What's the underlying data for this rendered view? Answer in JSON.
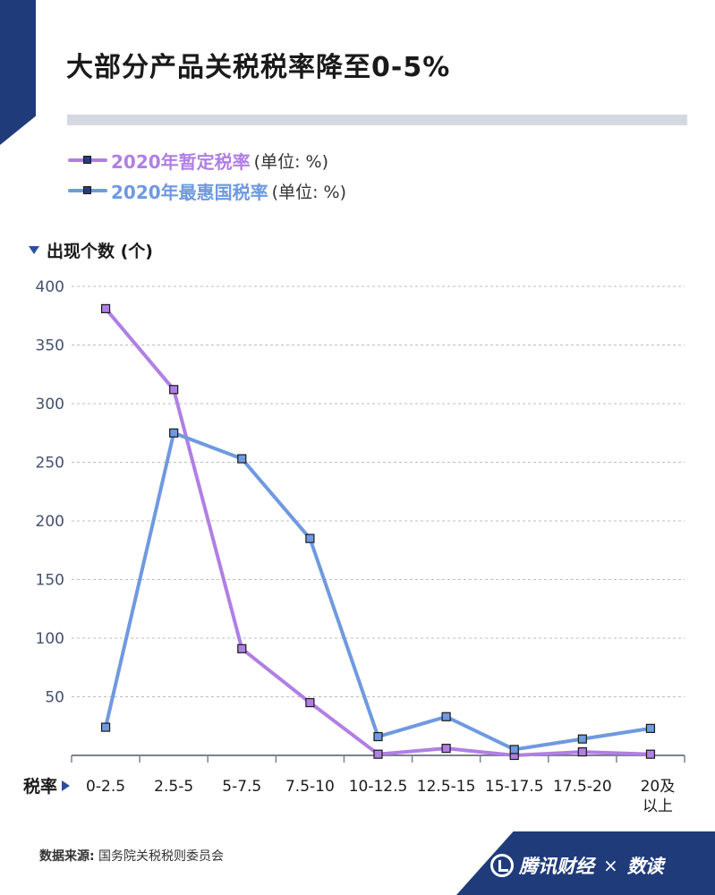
{
  "title": "大部分产品关税税率降至0-5%",
  "legend": [
    {
      "name": "2020年暂定税率",
      "unit": "(单位: %)",
      "color": "#b07fe4"
    },
    {
      "name": "2020年最惠国税率",
      "unit": "(单位: %)",
      "color": "#6f99e0"
    }
  ],
  "axis": {
    "y_title": "出现个数 (个)",
    "x_title": "税率"
  },
  "chart_data": {
    "type": "line",
    "categories": [
      "0-2.5",
      "2.5-5",
      "5-7.5",
      "7.5-10",
      "10-12.5",
      "12.5-15",
      "15-17.5",
      "17.5-20",
      "20及以上"
    ],
    "category_lines": [
      [
        "0-2.5"
      ],
      [
        "2.5-5"
      ],
      [
        "5-7.5"
      ],
      [
        "7.5-10"
      ],
      [
        "10-12.5"
      ],
      [
        "12.5-15"
      ],
      [
        "15-17.5"
      ],
      [
        "17.5-20"
      ],
      [
        "20及",
        "以上"
      ]
    ],
    "yticks": [
      50,
      100,
      150,
      200,
      250,
      300,
      350,
      400
    ],
    "ylim": [
      0,
      400
    ],
    "grid": true,
    "series": [
      {
        "name": "2020年暂定税率",
        "color": "#b07fe4",
        "values": [
          381,
          312,
          91,
          45,
          1,
          6,
          0,
          3,
          1
        ]
      },
      {
        "name": "2020年最惠国税率",
        "color": "#6f99e0",
        "values": [
          24,
          275,
          253,
          185,
          16,
          33,
          5,
          14,
          23
        ]
      }
    ]
  },
  "footer": {
    "source_label": "数据来源:",
    "source_text": " 国务院关税税则委员会",
    "brand": "腾讯财经",
    "cross": "×",
    "brand2": "数读"
  },
  "colors": {
    "navy": "#1f3b7a",
    "grid": "#b8bccb",
    "axis": "#7a8190"
  }
}
